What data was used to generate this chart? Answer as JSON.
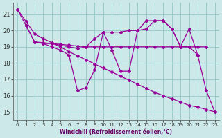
{
  "background_color": "#cce8e8",
  "line_color": "#990099",
  "grid_color": "#99cccc",
  "xlabel": "Windchill (Refroidissement éolien,°C)",
  "ylabel_ticks": [
    15,
    16,
    17,
    18,
    19,
    20,
    21
  ],
  "xlim": [
    -0.5,
    23.5
  ],
  "ylim": [
    14.5,
    21.7
  ],
  "xticks": [
    0,
    1,
    2,
    3,
    4,
    5,
    6,
    7,
    8,
    9,
    10,
    11,
    12,
    13,
    14,
    15,
    16,
    17,
    18,
    19,
    20,
    21,
    22,
    23
  ],
  "line1": {
    "x": [
      0,
      1,
      2,
      3,
      4,
      5,
      6,
      7,
      8,
      9,
      10,
      11,
      12,
      13,
      14,
      15,
      16,
      17,
      18,
      19,
      20,
      21,
      22,
      23
    ],
    "y": [
      21.3,
      20.55,
      19.8,
      19.5,
      19.25,
      19.0,
      18.7,
      18.45,
      18.2,
      17.95,
      17.7,
      17.45,
      17.2,
      16.95,
      16.7,
      16.45,
      16.2,
      16.0,
      15.8,
      15.6,
      15.4,
      15.3,
      15.15,
      15.0
    ]
  },
  "line2": {
    "x": [
      2,
      3,
      4,
      5,
      6,
      7,
      8,
      9,
      10,
      11,
      12,
      13,
      14,
      15,
      16,
      17,
      18,
      19,
      20,
      21,
      22
    ],
    "y": [
      19.3,
      19.25,
      19.2,
      19.15,
      19.1,
      19.05,
      19.0,
      19.0,
      19.0,
      19.0,
      19.0,
      19.0,
      19.0,
      19.0,
      19.0,
      19.0,
      19.0,
      19.0,
      19.0,
      19.0,
      19.0
    ]
  },
  "line3": {
    "x": [
      0,
      1,
      2,
      3,
      4,
      5,
      6,
      7,
      8,
      9,
      10,
      11,
      12,
      13,
      14,
      15,
      16,
      17,
      18,
      19,
      20,
      21,
      22,
      23
    ],
    "y": [
      21.3,
      20.3,
      19.3,
      19.2,
      19.0,
      18.8,
      18.5,
      16.3,
      16.5,
      17.6,
      19.9,
      18.8,
      17.5,
      17.5,
      20.0,
      20.6,
      20.6,
      20.6,
      20.1,
      19.0,
      19.0,
      18.5,
      16.3,
      15.0
    ]
  },
  "line4": {
    "x": [
      1,
      2,
      3,
      4,
      5,
      6,
      7,
      8,
      9,
      10,
      11,
      12,
      13,
      14,
      15,
      16,
      17,
      18,
      19,
      20,
      21
    ],
    "y": [
      20.3,
      19.3,
      19.2,
      19.2,
      19.1,
      19.0,
      18.9,
      19.0,
      19.5,
      19.9,
      19.9,
      19.9,
      20.0,
      20.0,
      20.1,
      20.6,
      20.6,
      20.1,
      19.0,
      20.1,
      18.5
    ]
  }
}
